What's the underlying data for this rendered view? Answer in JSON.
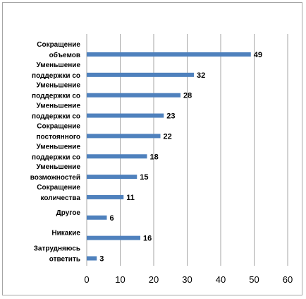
{
  "chart_data": {
    "type": "bar",
    "orientation": "horizontal",
    "categories": [
      [
        "Сокращение",
        "объемов"
      ],
      [
        "Уменьшение",
        "поддержки со"
      ],
      [
        "Уменьшение",
        "поддержки со"
      ],
      [
        "Уменьшение",
        "поддержки со"
      ],
      [
        "Сокращение",
        "постоянного"
      ],
      [
        "Уменьшение",
        "поддержки со"
      ],
      [
        "Уменьшение",
        "возможностей"
      ],
      [
        "Сокращение",
        "количества"
      ],
      [
        "Другое"
      ],
      [
        "Никакие"
      ],
      [
        "Затрудняюсь",
        "ответить"
      ]
    ],
    "values": [
      49,
      32,
      28,
      23,
      22,
      18,
      15,
      11,
      6,
      16,
      3
    ],
    "data_labels": [
      "49",
      "32",
      "28",
      "23",
      "22",
      "18",
      "15",
      "11",
      "6",
      "16",
      "3"
    ],
    "xlim": [
      0,
      60
    ],
    "x_ticks": [
      "0",
      "10",
      "20",
      "30",
      "40",
      "50",
      "60"
    ],
    "grid": "vertical",
    "legend": "none",
    "title": "",
    "xlabel": "",
    "ylabel": "",
    "colors": {
      "bar": "#4f81bd",
      "grid": "#a6a6a6",
      "frame": "#a6a6a6"
    }
  }
}
